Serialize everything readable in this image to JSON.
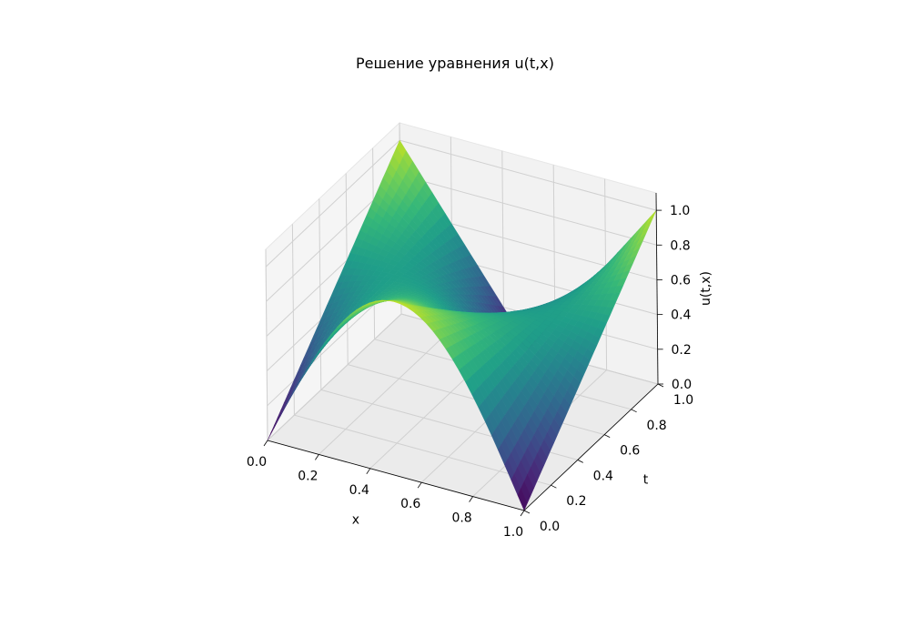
{
  "chart_data": {
    "type": "surface",
    "title": "Решение уравнения u(t,x)",
    "xlabel": "x",
    "ylabel": "t",
    "zlabel": "u(t,x)",
    "xlim": [
      0,
      1
    ],
    "ylim": [
      0,
      1
    ],
    "zlim": [
      0,
      1.1
    ],
    "x_ticks": [
      "0.0",
      "0.2",
      "0.4",
      "0.6",
      "0.8",
      "1.0"
    ],
    "y_ticks": [
      "0.0",
      "0.2",
      "0.4",
      "0.6",
      "0.8",
      "1.0"
    ],
    "z_ticks": [
      "0.0",
      "0.2",
      "0.4",
      "0.6",
      "0.8",
      "1.0"
    ],
    "colormap": "viridis",
    "colormap_colors": [
      "#440154",
      "#482777",
      "#3e4989",
      "#31688e",
      "#26828e",
      "#1f9e89",
      "#35b779",
      "#6ece58",
      "#b5de2b",
      "#fde725"
    ],
    "grid": true,
    "surface": {
      "x_count": 41,
      "t_count": 41,
      "t": [
        0,
        0.025,
        0.05,
        0.075,
        0.1,
        0.125,
        0.15,
        0.175,
        0.2,
        0.225,
        0.25,
        0.275,
        0.3,
        0.325,
        0.35,
        0.375,
        0.4,
        0.425,
        0.45,
        0.475,
        0.5,
        0.525,
        0.55,
        0.575,
        0.6,
        0.625,
        0.65,
        0.675,
        0.7,
        0.725,
        0.75,
        0.775,
        0.8,
        0.825,
        0.85,
        0.875,
        0.9,
        0.925,
        0.95,
        0.975,
        1.0
      ],
      "x": [
        0,
        0.025,
        0.05,
        0.075,
        0.1,
        0.125,
        0.15,
        0.175,
        0.2,
        0.225,
        0.25,
        0.275,
        0.3,
        0.325,
        0.35,
        0.375,
        0.4,
        0.425,
        0.45,
        0.475,
        0.5,
        0.525,
        0.55,
        0.575,
        0.6,
        0.625,
        0.65,
        0.675,
        0.7,
        0.725,
        0.75,
        0.775,
        0.8,
        0.825,
        0.85,
        0.875,
        0.9,
        0.925,
        0.95,
        0.975,
        1.0
      ]
    }
  }
}
